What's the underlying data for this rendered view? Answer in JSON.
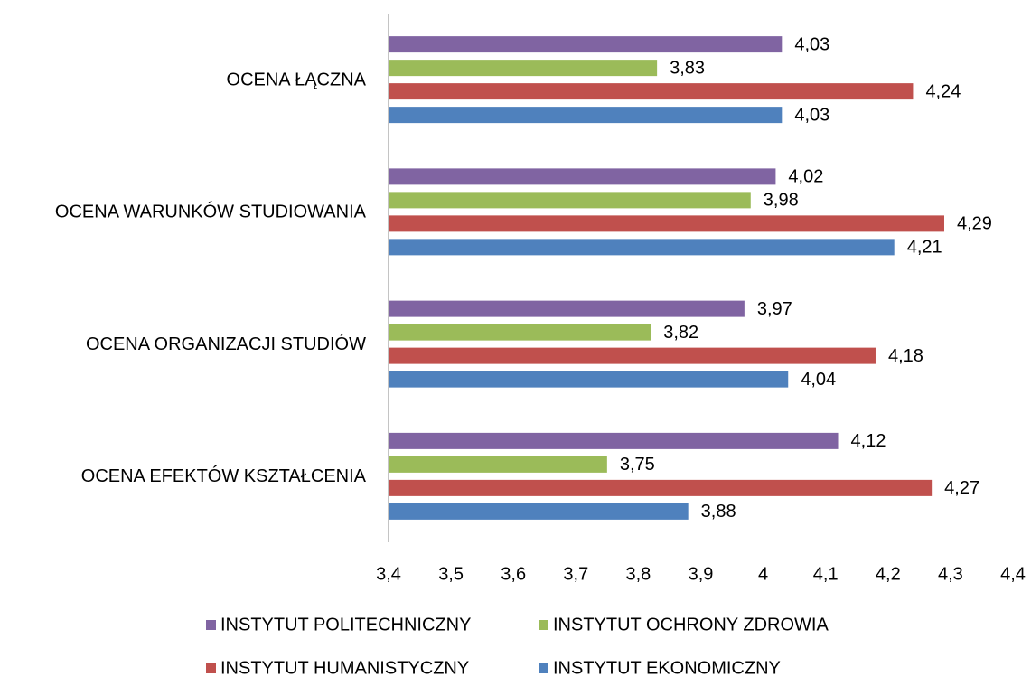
{
  "chart_data": {
    "type": "barh",
    "categories": [
      "OCENA ŁĄCZNA",
      "OCENA WARUNKÓW STUDIOWANIA",
      "OCENA ORGANIZACJI STUDIÓW",
      "OCENA EFEKTÓW KSZTAŁCENIA"
    ],
    "series": [
      {
        "name": "INSTYTUT POLITECHNICZNY",
        "color": "#8064a2",
        "values": [
          4.03,
          4.02,
          3.97,
          4.12
        ],
        "value_labels": [
          "4,03",
          "4,02",
          "3,97",
          "4,12"
        ]
      },
      {
        "name": "INSTYTUT OCHRONY ZDROWIA",
        "color": "#9bbb59",
        "values": [
          3.83,
          3.98,
          3.82,
          3.75
        ],
        "value_labels": [
          "3,83",
          "3,98",
          "3,82",
          "3,75"
        ]
      },
      {
        "name": "INSTYTUT HUMANISTYCZNY",
        "color": "#c0504d",
        "values": [
          4.24,
          4.29,
          4.18,
          4.27
        ],
        "value_labels": [
          "4,24",
          "4,29",
          "4,18",
          "4,27"
        ]
      },
      {
        "name": "INSTYTUT EKONOMICZNY",
        "color": "#4f81bd",
        "values": [
          4.03,
          4.21,
          4.04,
          3.88
        ],
        "value_labels": [
          "4,03",
          "4,21",
          "4,04",
          "3,88"
        ]
      }
    ],
    "xlim": [
      3.4,
      4.4
    ],
    "xticks": [
      {
        "value": 3.4,
        "label": "3,4"
      },
      {
        "value": 3.5,
        "label": "3,5"
      },
      {
        "value": 3.6,
        "label": "3,6"
      },
      {
        "value": 3.7,
        "label": "3,7"
      },
      {
        "value": 3.8,
        "label": "3,8"
      },
      {
        "value": 3.9,
        "label": "3,9"
      },
      4,
      {
        "value": 4.1,
        "label": "4,1"
      },
      {
        "value": 4.2,
        "label": "4,2"
      },
      {
        "value": 4.3,
        "label": "4,3"
      },
      {
        "value": 4.4,
        "label": "4,4"
      }
    ],
    "grid": false,
    "legend": "bottom"
  }
}
